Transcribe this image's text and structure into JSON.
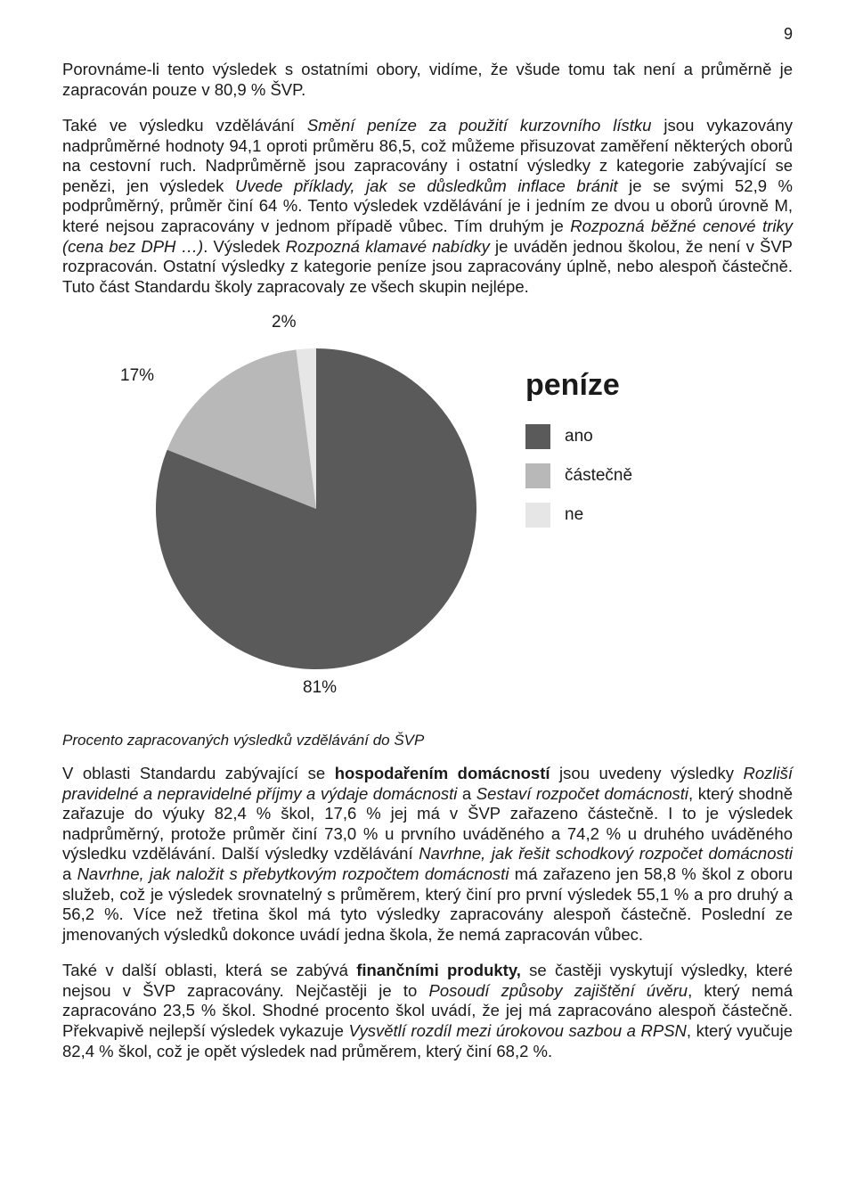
{
  "page_number": "9",
  "para1_html": "Porovnáme-li tento výsledek s ostatními obory, vidíme, že všude tomu tak není a průměrně je zapracován pouze v 80,9 % ŠVP.",
  "para2_html": "Také ve výsledku vzdělávání <i>Smění peníze za použití kurzovního lístku</i> jsou vykazovány nadprůměrné hodnoty 94,1 oproti průměru 86,5, což můžeme přisuzovat zaměření některých oborů na cestovní ruch. Nadprůměrně jsou zapracovány i ostatní výsledky z kategorie zabývající se penězi, jen výsledek <i>Uvede příklady, jak se důsledkům inflace bránit</i> je se svými 52,9 % podprůměrný, průměr činí 64 %. Tento výsledek vzdělávání je i jedním ze dvou u oborů úrovně M, které nejsou zapracovány v jednom případě vůbec. Tím druhým je <i>Rozpozná běžné cenové triky (cena bez DPH …)</i>. Výsledek <i>Rozpozná klamavé nabídky</i> je uváděn jednou školou, že není v ŠVP rozpracován. Ostatní výsledky z kategorie peníze jsou zapracovány úplně, nebo alespoň částečně. Tuto část Standardu školy zapracovaly ze všech skupin nejlépe.",
  "chart": {
    "type": "pie",
    "title": "peníze",
    "radius": 180,
    "background_color": "#ffffff",
    "slices": [
      {
        "label": "ano",
        "value": 81,
        "color": "#5a5a5a"
      },
      {
        "label": "částečně",
        "value": 17,
        "color": "#b8b8b8"
      },
      {
        "label": "ne",
        "value": 2,
        "color": "#e6e6e6"
      }
    ],
    "labels": {
      "ano": "81%",
      "castecne": "17%",
      "ne": "2%"
    },
    "legend": [
      {
        "text": "ano",
        "color": "#5a5a5a"
      },
      {
        "text": "částečně",
        "color": "#b8b8b8"
      },
      {
        "text": "ne",
        "color": "#e6e6e6"
      }
    ],
    "title_fontsize": 34,
    "label_fontsize": 19,
    "legend_fontsize": 19
  },
  "caption": "Procento zapracovaných výsledků vzdělávání do ŠVP",
  "para3_html": "V oblasti Standardu zabývající se <b>hospodařením domácností</b> jsou uvedeny výsledky <i>Rozliší pravidelné a nepravidelné příjmy a výdaje domácnosti</i> a <i>Sestaví rozpočet domácnosti</i>, který shodně zařazuje do výuky 82,4 % škol, 17,6 % jej má v ŠVP zařazeno částečně. I to je výsledek nadprůměrný, protože průměr činí 73,0 % u prvního uváděného a 74,2 % u druhého uváděného výsledku vzdělávání. Další výsledky vzdělávání <i>Navrhne, jak řešit schodkový rozpočet domácnosti</i> a <i>Navrhne, jak naložit s přebytkovým rozpočtem domácnosti</i> má zařazeno jen 58,8 % škol z oboru služeb, což je výsledek srovnatelný s průměrem, který činí pro první výsledek 55,1 % a pro druhý a 56,2 %. Více než třetina škol má tyto výsledky zapracovány alespoň částečně. Poslední ze jmenovaných výsledků dokonce uvádí jedna škola, že nemá zapracován vůbec.",
  "para4_html": "Také v další oblasti, která se zabývá <b>finančními produkty,</b> se častěji vyskytují výsledky, které nejsou v ŠVP zapracovány. Nejčastěji je to <i>Posoudí způsoby zajištění úvěru</i>, který nemá zapracováno 23,5 % škol. Shodné procento škol uvádí, že jej má zapracováno alespoň částečně. Překvapivě nejlepší výsledek vykazuje <i>Vysvětlí rozdíl mezi úrokovou sazbou a RPSN</i>, který vyučuje 82,4 % škol, což je opět výsledek nad průměrem, který činí 68,2 %."
}
